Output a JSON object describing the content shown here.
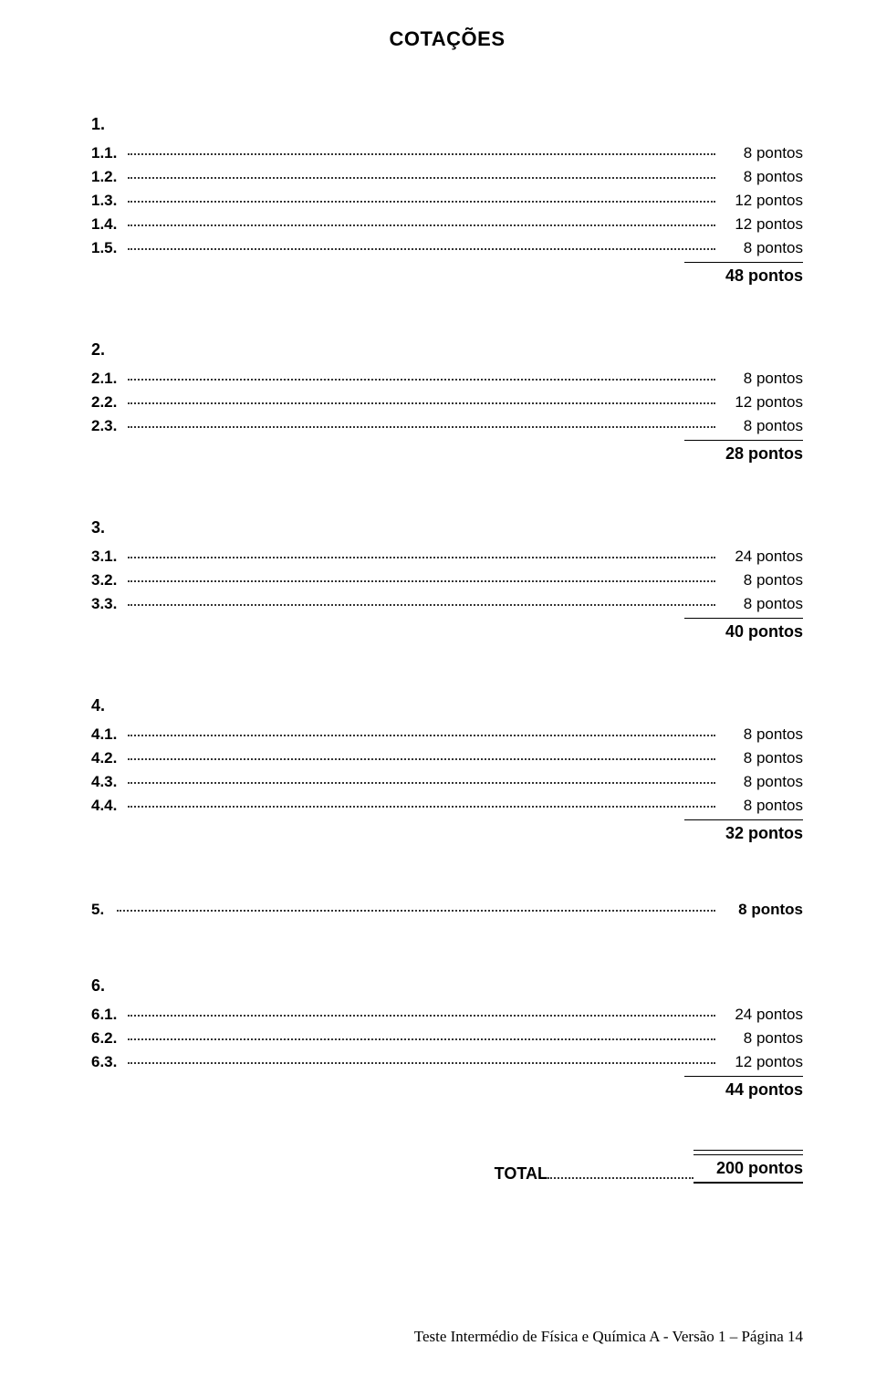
{
  "title": "COTAÇÕES",
  "points_word": "pontos",
  "groups": [
    {
      "head": "1.",
      "items": [
        {
          "num": "1.1.",
          "pts": "8 pontos"
        },
        {
          "num": "1.2.",
          "pts": "8 pontos"
        },
        {
          "num": "1.3.",
          "pts": "12 pontos"
        },
        {
          "num": "1.4.",
          "pts": "12 pontos"
        },
        {
          "num": "1.5.",
          "pts": "8 pontos"
        }
      ],
      "subtotal": "48 pontos"
    },
    {
      "head": "2.",
      "items": [
        {
          "num": "2.1.",
          "pts": "8 pontos"
        },
        {
          "num": "2.2.",
          "pts": "12 pontos"
        },
        {
          "num": "2.3.",
          "pts": "8 pontos"
        }
      ],
      "subtotal": "28 pontos"
    },
    {
      "head": "3.",
      "items": [
        {
          "num": "3.1.",
          "pts": "24 pontos"
        },
        {
          "num": "3.2.",
          "pts": "8 pontos"
        },
        {
          "num": "3.3.",
          "pts": "8 pontos"
        }
      ],
      "subtotal": "40 pontos"
    },
    {
      "head": "4.",
      "items": [
        {
          "num": "4.1.",
          "pts": "8 pontos"
        },
        {
          "num": "4.2.",
          "pts": "8 pontos"
        },
        {
          "num": "4.3.",
          "pts": "8 pontos"
        },
        {
          "num": "4.4.",
          "pts": "8 pontos"
        }
      ],
      "subtotal": "32 pontos"
    }
  ],
  "single5": {
    "num": "5.",
    "pts": "8 pontos"
  },
  "group6": {
    "head": "6.",
    "items": [
      {
        "num": "6.1.",
        "pts": "24 pontos"
      },
      {
        "num": "6.2.",
        "pts": "8 pontos"
      },
      {
        "num": "6.3.",
        "pts": "12 pontos"
      }
    ],
    "subtotal": "44 pontos"
  },
  "total": {
    "label": "TOTAL",
    "value": "200 pontos"
  },
  "footer": "Teste Intermédio de Física e Química A - Versão 1 – Página 14"
}
